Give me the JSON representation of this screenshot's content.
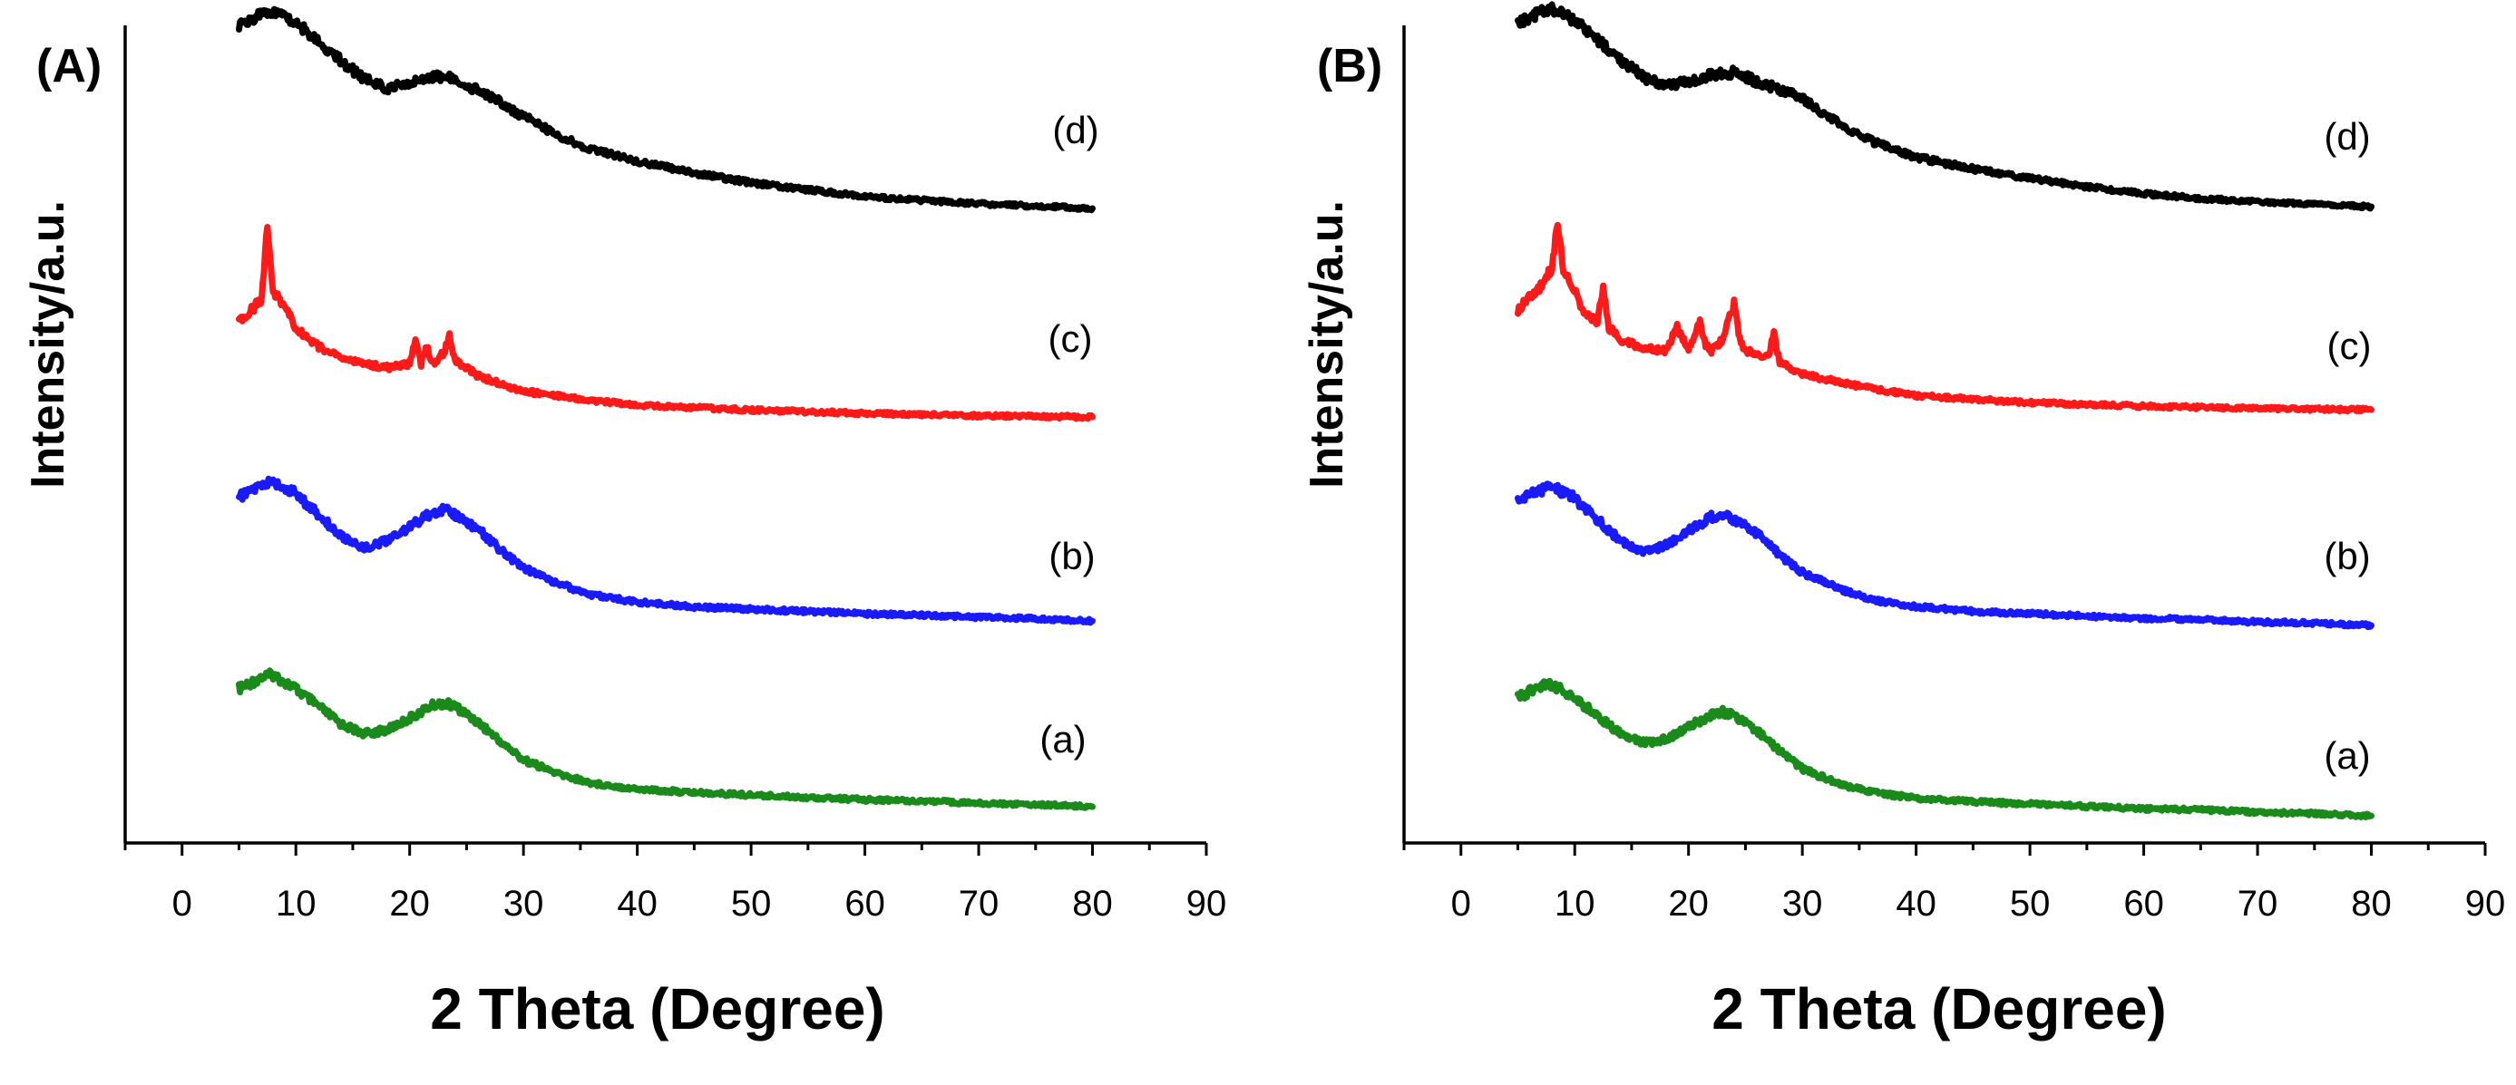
{
  "chart_data": [
    {
      "type": "line",
      "panel_label": "(A)",
      "xlabel": "2 Theta (Degree)",
      "ylabel": "Intensity/a.u.",
      "xlim": [
        -5,
        90
      ],
      "xticks": [
        0,
        10,
        20,
        30,
        40,
        50,
        60,
        70,
        80,
        90
      ],
      "yticks": "none (arbitrary units)",
      "series": [
        {
          "name": "(a)",
          "color": "#1a8a1a",
          "offset": 0,
          "x": [
            5,
            7,
            8,
            10,
            12,
            14,
            16,
            18,
            20,
            22,
            23,
            24,
            26,
            28,
            30,
            33,
            36,
            40,
            45,
            50,
            55,
            60,
            65,
            70,
            75,
            80
          ],
          "values": [
            1.0,
            1.1,
            1.12,
            1.0,
            0.85,
            0.7,
            0.62,
            0.65,
            0.75,
            0.86,
            0.88,
            0.85,
            0.72,
            0.55,
            0.4,
            0.28,
            0.2,
            0.15,
            0.12,
            0.1,
            0.08,
            0.06,
            0.05,
            0.03,
            0.02,
            0.0
          ]
        },
        {
          "name": "(b)",
          "color": "#1a1aff",
          "offset": 1,
          "x": [
            5,
            7,
            8,
            10,
            12,
            14,
            16,
            18,
            20,
            22,
            23,
            24,
            26,
            28,
            30,
            33,
            36,
            40,
            45,
            50,
            55,
            60,
            65,
            70,
            75,
            80
          ],
          "values": [
            1.05,
            1.15,
            1.18,
            1.08,
            0.9,
            0.72,
            0.62,
            0.68,
            0.8,
            0.92,
            0.95,
            0.9,
            0.78,
            0.6,
            0.45,
            0.32,
            0.22,
            0.16,
            0.12,
            0.1,
            0.08,
            0.06,
            0.05,
            0.03,
            0.02,
            0.0
          ]
        },
        {
          "name": "(c)",
          "color": "#ff1a1a",
          "offset": 2,
          "x": [
            5,
            6,
            7,
            7.5,
            8,
            9,
            10,
            12,
            14,
            16,
            18,
            20,
            20.5,
            21,
            21.5,
            22,
            23,
            23.5,
            24,
            26,
            28,
            30,
            35,
            40,
            50,
            60,
            70,
            80
          ],
          "values": [
            0.8,
            0.9,
            1.0,
            1.65,
            1.05,
            0.95,
            0.75,
            0.6,
            0.5,
            0.45,
            0.42,
            0.45,
            0.65,
            0.45,
            0.6,
            0.45,
            0.55,
            0.68,
            0.48,
            0.35,
            0.28,
            0.22,
            0.15,
            0.1,
            0.06,
            0.03,
            0.01,
            0.0
          ]
        },
        {
          "name": "(d)",
          "color": "#000000",
          "offset": 3,
          "x": [
            5,
            7,
            8,
            10,
            12,
            14,
            16,
            18,
            20,
            22,
            24,
            26,
            28,
            30,
            33,
            36,
            40,
            45,
            50,
            55,
            60,
            65,
            70,
            75,
            80
          ],
          "values": [
            1.55,
            1.65,
            1.68,
            1.58,
            1.42,
            1.25,
            1.1,
            1.02,
            1.06,
            1.12,
            1.1,
            1.0,
            0.9,
            0.78,
            0.62,
            0.5,
            0.4,
            0.3,
            0.22,
            0.16,
            0.1,
            0.07,
            0.04,
            0.02,
            0.0
          ]
        }
      ]
    },
    {
      "type": "line",
      "panel_label": "(B)",
      "xlabel": "2 Theta (Degree)",
      "ylabel": "Intensity/a.u.",
      "xlim": [
        -5,
        90
      ],
      "xticks": [
        0,
        10,
        20,
        30,
        40,
        50,
        60,
        70,
        80,
        90
      ],
      "yticks": "none (arbitrary units)",
      "series": [
        {
          "name": "(a)",
          "color": "#1a8a1a",
          "offset": 0,
          "x": [
            5,
            7,
            8,
            10,
            12,
            14,
            16,
            18,
            20,
            22,
            23,
            24,
            26,
            28,
            30,
            33,
            36,
            40,
            45,
            50,
            55,
            60,
            65,
            70,
            75,
            80
          ],
          "values": [
            1.0,
            1.1,
            1.12,
            1.0,
            0.85,
            0.7,
            0.62,
            0.65,
            0.75,
            0.86,
            0.88,
            0.85,
            0.72,
            0.55,
            0.4,
            0.28,
            0.2,
            0.15,
            0.12,
            0.1,
            0.08,
            0.06,
            0.05,
            0.03,
            0.02,
            0.0
          ]
        },
        {
          "name": "(b)",
          "color": "#1a1aff",
          "offset": 1,
          "x": [
            5,
            7,
            8,
            10,
            12,
            14,
            16,
            18,
            20,
            22,
            23,
            24,
            26,
            28,
            30,
            33,
            36,
            40,
            45,
            50,
            55,
            60,
            65,
            70,
            75,
            80
          ],
          "values": [
            1.05,
            1.15,
            1.18,
            1.08,
            0.9,
            0.72,
            0.62,
            0.68,
            0.8,
            0.92,
            0.95,
            0.9,
            0.78,
            0.6,
            0.45,
            0.32,
            0.22,
            0.16,
            0.12,
            0.1,
            0.08,
            0.06,
            0.05,
            0.03,
            0.02,
            0.0
          ]
        },
        {
          "name": "(c)",
          "color": "#ff1a1a",
          "offset": 2,
          "x": [
            5,
            6,
            7,
            8,
            8.5,
            9,
            10,
            11,
            12,
            12.5,
            13,
            14,
            16,
            18,
            19,
            20,
            21,
            21.5,
            22,
            23,
            24,
            24.5,
            25,
            27,
            27.5,
            28,
            30,
            35,
            40,
            50,
            60,
            70,
            80
          ],
          "values": [
            0.85,
            0.95,
            1.05,
            1.2,
            1.6,
            1.2,
            1.0,
            0.8,
            0.75,
            1.05,
            0.7,
            0.6,
            0.52,
            0.5,
            0.7,
            0.5,
            0.75,
            0.55,
            0.5,
            0.6,
            0.9,
            0.6,
            0.5,
            0.45,
            0.65,
            0.4,
            0.3,
            0.2,
            0.12,
            0.06,
            0.03,
            0.01,
            0.0
          ]
        },
        {
          "name": "(d)",
          "color": "#000000",
          "offset": 3,
          "x": [
            5,
            7,
            8,
            10,
            12,
            14,
            16,
            18,
            20,
            22,
            24,
            26,
            28,
            30,
            33,
            36,
            40,
            45,
            50,
            55,
            60,
            65,
            70,
            75,
            80
          ],
          "values": [
            1.55,
            1.65,
            1.68,
            1.58,
            1.42,
            1.25,
            1.1,
            1.02,
            1.06,
            1.12,
            1.14,
            1.06,
            1.0,
            0.92,
            0.72,
            0.56,
            0.42,
            0.32,
            0.24,
            0.17,
            0.11,
            0.07,
            0.04,
            0.02,
            0.0
          ]
        }
      ]
    }
  ]
}
